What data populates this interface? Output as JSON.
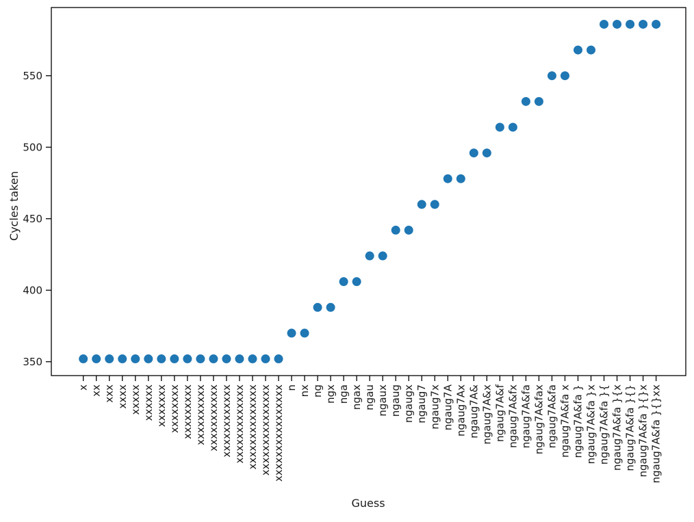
{
  "figure": {
    "background_color": "#ffffff"
  },
  "chart_data": {
    "type": "scatter",
    "title": "",
    "xlabel": "Guess",
    "ylabel": "Cycles taken",
    "categories": [
      "x",
      "xx",
      "xxx",
      "xxxx",
      "xxxxx",
      "xxxxxx",
      "xxxxxxx",
      "xxxxxxxx",
      "xxxxxxxxx",
      "xxxxxxxxxx",
      "xxxxxxxxxxx",
      "xxxxxxxxxxxx",
      "xxxxxxxxxxxxx",
      "xxxxxxxxxxxxxx",
      "xxxxxxxxxxxxxxx",
      "xxxxxxxxxxxxxxxx",
      "n",
      "nx",
      "ng",
      "ngx",
      "nga",
      "ngax",
      "ngau",
      "ngaux",
      "ngaug",
      "ngaugx",
      "ngaug7",
      "ngaug7x",
      "ngaug7A",
      "ngaug7Ax",
      "ngaug7A&",
      "ngaug7A&x",
      "ngaug7A&f",
      "ngaug7A&fx",
      "ngaug7A&fa",
      "ngaug7A&fax",
      "ngaug7A&fa ",
      "ngaug7A&fa x",
      "ngaug7A&fa }",
      "ngaug7A&fa }x",
      "ngaug7A&fa }{",
      "ngaug7A&fa }{x",
      "ngaug7A&fa }{}",
      "ngaug7A&fa }{}x",
      "ngaug7A&fa }{}xx"
    ],
    "values": [
      352,
      352,
      352,
      352,
      352,
      352,
      352,
      352,
      352,
      352,
      352,
      352,
      352,
      352,
      352,
      352,
      370,
      370,
      388,
      388,
      406,
      406,
      424,
      424,
      442,
      442,
      460,
      460,
      478,
      478,
      496,
      496,
      514,
      514,
      532,
      532,
      550,
      550,
      568,
      568,
      586,
      586,
      586,
      586,
      586
    ],
    "yticks": [
      350,
      400,
      450,
      500,
      550
    ],
    "ylim": [
      340.3,
      597.7
    ],
    "grid": false,
    "legend": false,
    "marker": {
      "shape": "circle",
      "color": "#1f77b4",
      "radius_px": 6.5
    },
    "axis_color": "#000000",
    "text_color": "#1a1a1a"
  }
}
